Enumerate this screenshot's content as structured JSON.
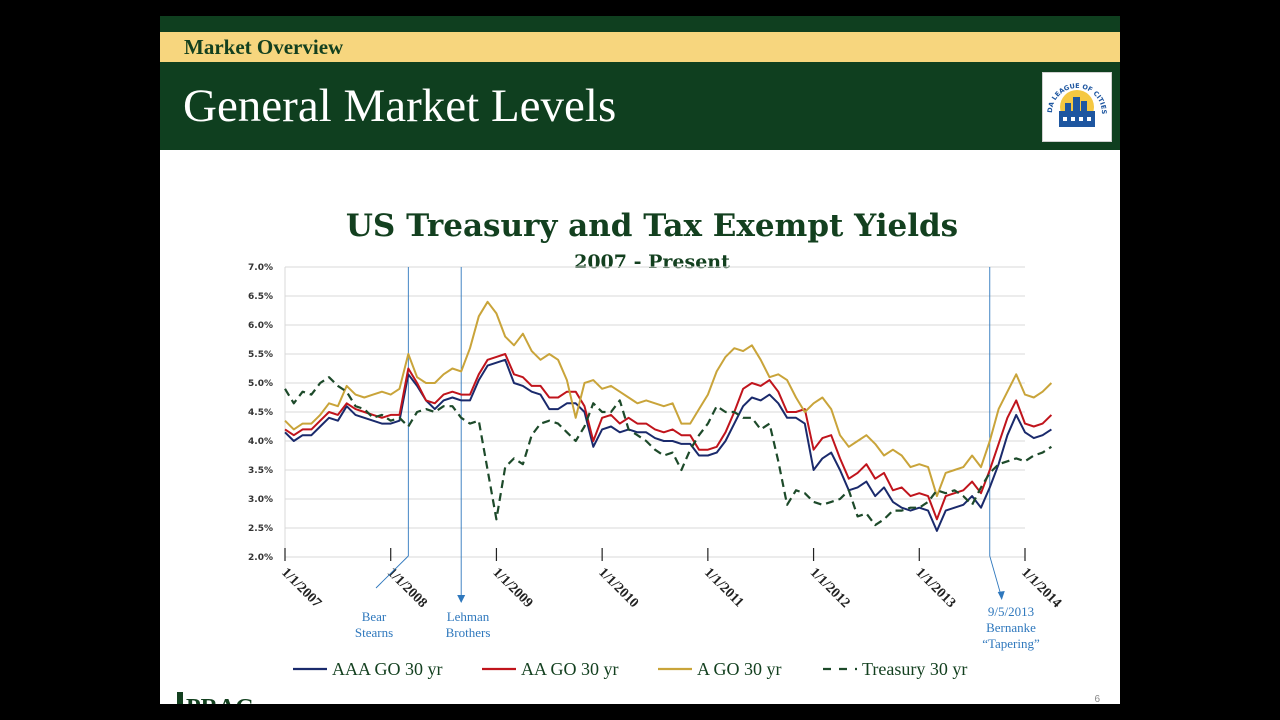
{
  "header": {
    "section": "Market Overview",
    "title": "General Market Levels"
  },
  "footer": {
    "page_number": "6",
    "brand_partial": "PRAG"
  },
  "colors": {
    "AAA": "#1a2a6c",
    "AA": "#c0141c",
    "A": "#c9a43a",
    "Treasury": "#1d4a2a",
    "annotation": "#2f78bd",
    "brand_green": "#0f3f1f",
    "gold": "#f7d67e"
  },
  "logo": {
    "icon": "florida-league-of-cities-logo-icon",
    "text": "FLORIDA LEAGUE OF CITIES, INC."
  },
  "chart_data": {
    "type": "line",
    "title": "US Treasury and Tax Exempt Yields",
    "subtitle": "2007 - Present",
    "ylim": [
      2.0,
      7.0
    ],
    "yticks": [
      "7.0%",
      "6.5%",
      "6.0%",
      "5.5%",
      "5.0%",
      "4.5%",
      "4.0%",
      "3.5%",
      "3.0%",
      "2.5%",
      "2.0%"
    ],
    "xticks": [
      "1/1/2007",
      "1/1/2008",
      "1/1/2009",
      "1/1/2010",
      "1/1/2011",
      "1/1/2012",
      "1/1/2013",
      "1/1/2014"
    ],
    "x_start": "2007-01",
    "x_step": "monthly",
    "grid": true,
    "legend": "bottom",
    "series": [
      {
        "name": "AAA GO 30 yr",
        "style": "solid",
        "values": [
          4.15,
          4.0,
          4.1,
          4.1,
          4.25,
          4.4,
          4.35,
          4.6,
          4.45,
          4.4,
          4.35,
          4.3,
          4.3,
          4.35,
          5.15,
          4.95,
          4.7,
          4.55,
          4.7,
          4.75,
          4.7,
          4.7,
          5.05,
          5.3,
          5.35,
          5.4,
          5.0,
          4.95,
          4.85,
          4.8,
          4.55,
          4.55,
          4.65,
          4.65,
          4.5,
          3.9,
          4.2,
          4.25,
          4.15,
          4.2,
          4.15,
          4.15,
          4.05,
          4.0,
          4.0,
          3.95,
          3.95,
          3.75,
          3.75,
          3.8,
          4.0,
          4.3,
          4.6,
          4.75,
          4.7,
          4.8,
          4.65,
          4.4,
          4.4,
          4.3,
          3.5,
          3.7,
          3.8,
          3.5,
          3.15,
          3.2,
          3.3,
          3.05,
          3.2,
          2.95,
          2.85,
          2.8,
          2.85,
          2.8,
          2.45,
          2.8,
          2.85,
          2.9,
          3.05,
          2.85,
          3.2,
          3.6,
          4.1,
          4.45,
          4.15,
          4.05,
          4.1,
          4.2
        ]
      },
      {
        "name": "AA GO 30 yr",
        "style": "solid",
        "values": [
          4.2,
          4.1,
          4.2,
          4.2,
          4.35,
          4.5,
          4.45,
          4.65,
          4.55,
          4.5,
          4.45,
          4.4,
          4.45,
          4.45,
          5.25,
          5.0,
          4.7,
          4.65,
          4.8,
          4.85,
          4.8,
          4.8,
          5.15,
          5.4,
          5.45,
          5.5,
          5.15,
          5.1,
          4.95,
          4.95,
          4.75,
          4.75,
          4.85,
          4.85,
          4.6,
          4.0,
          4.4,
          4.45,
          4.3,
          4.4,
          4.3,
          4.3,
          4.2,
          4.15,
          4.2,
          4.1,
          4.1,
          3.85,
          3.85,
          3.9,
          4.15,
          4.5,
          4.9,
          5.0,
          4.95,
          5.05,
          4.85,
          4.5,
          4.5,
          4.55,
          3.85,
          4.05,
          4.1,
          3.7,
          3.35,
          3.45,
          3.6,
          3.35,
          3.45,
          3.15,
          3.2,
          3.05,
          3.1,
          3.05,
          2.65,
          3.05,
          3.1,
          3.15,
          3.3,
          3.1,
          3.5,
          3.95,
          4.4,
          4.7,
          4.3,
          4.25,
          4.3,
          4.45
        ]
      },
      {
        "name": "A GO 30 yr",
        "style": "solid",
        "values": [
          4.35,
          4.2,
          4.3,
          4.3,
          4.45,
          4.65,
          4.6,
          4.95,
          4.8,
          4.75,
          4.8,
          4.85,
          4.8,
          4.9,
          5.5,
          5.1,
          5.0,
          5.0,
          5.15,
          5.25,
          5.2,
          5.6,
          6.15,
          6.4,
          6.2,
          5.8,
          5.65,
          5.85,
          5.55,
          5.4,
          5.5,
          5.4,
          5.05,
          4.4,
          5.0,
          5.05,
          4.9,
          4.95,
          4.85,
          4.75,
          4.65,
          4.7,
          4.65,
          4.6,
          4.65,
          4.3,
          4.3,
          4.55,
          4.8,
          5.2,
          5.45,
          5.6,
          5.55,
          5.65,
          5.4,
          5.1,
          5.15,
          5.05,
          4.75,
          4.5,
          4.65,
          4.75,
          4.55,
          4.1,
          3.9,
          4.0,
          4.1,
          3.95,
          3.75,
          3.85,
          3.75,
          3.55,
          3.6,
          3.55,
          3.05,
          3.45,
          3.5,
          3.55,
          3.75,
          3.55,
          4.0,
          4.55,
          4.85,
          5.15,
          4.8,
          4.75,
          4.85,
          5.0
        ]
      },
      {
        "name": "Treasury 30 yr",
        "style": "dashed",
        "values": [
          4.9,
          4.65,
          4.85,
          4.8,
          5.0,
          5.1,
          4.95,
          4.85,
          4.6,
          4.55,
          4.4,
          4.45,
          4.35,
          4.4,
          4.25,
          4.5,
          4.55,
          4.5,
          4.6,
          4.6,
          4.4,
          4.3,
          4.35,
          3.5,
          2.65,
          3.55,
          3.7,
          3.6,
          4.1,
          4.3,
          4.35,
          4.3,
          4.15,
          4.0,
          4.25,
          4.65,
          4.5,
          4.5,
          4.7,
          4.2,
          4.1,
          4.0,
          3.85,
          3.75,
          3.8,
          3.5,
          3.85,
          4.1,
          4.3,
          4.6,
          4.5,
          4.5,
          4.4,
          4.4,
          4.2,
          4.3,
          3.65,
          2.9,
          3.15,
          3.1,
          2.95,
          2.9,
          2.95,
          3.0,
          3.15,
          2.7,
          2.75,
          2.55,
          2.65,
          2.8,
          2.8,
          2.85,
          2.85,
          2.95,
          3.15,
          3.1,
          3.15,
          3.05,
          2.9,
          3.2,
          3.45,
          3.6,
          3.65,
          3.7,
          3.65,
          3.75,
          3.8,
          3.9
        ]
      }
    ],
    "annotations": [
      {
        "label": [
          "Bear",
          "Stearns"
        ],
        "date": "2008-03"
      },
      {
        "label": [
          "Lehman",
          "Brothers"
        ],
        "date": "2008-09"
      },
      {
        "label": [
          "9/5/2013",
          "Bernanke",
          "“Tapering”"
        ],
        "date": "2013-09"
      }
    ]
  }
}
